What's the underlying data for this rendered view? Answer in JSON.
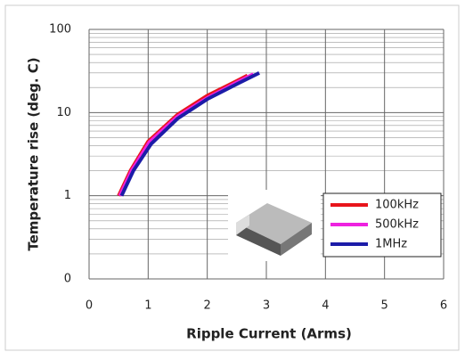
{
  "chart_data": {
    "type": "line",
    "xlabel": "Ripple Current (Arms)",
    "ylabel": "Temperature rise (deg. C)",
    "xlim": [
      0,
      6
    ],
    "xticks": [
      0,
      1,
      2,
      3,
      4,
      5,
      6
    ],
    "ylim": [
      0.1,
      100
    ],
    "yticks": [
      {
        "value": 0.1,
        "label": "0"
      },
      1,
      10,
      100
    ],
    "ylog": true,
    "grid": true,
    "legend": "lower right",
    "series": [
      {
        "name": "100kHz",
        "color": "#e8141b",
        "x": [
          0.5,
          0.7,
          1.0,
          1.5,
          2.0,
          2.5,
          2.68
        ],
        "values": [
          1,
          2,
          4.5,
          9.5,
          16,
          24,
          28
        ]
      },
      {
        "name": "500kHz",
        "color": "#ee22e0",
        "x": [
          0.52,
          0.72,
          1.02,
          1.5,
          2.0,
          2.5,
          2.78
        ],
        "values": [
          1,
          2,
          4.4,
          9,
          15,
          23,
          29
        ]
      },
      {
        "name": "1MHz",
        "color": "#1c1ca8",
        "x": [
          0.55,
          0.75,
          1.05,
          1.5,
          2.0,
          2.5,
          2.88
        ],
        "values": [
          1,
          2,
          4.2,
          8.5,
          14.5,
          22,
          30
        ]
      }
    ]
  }
}
